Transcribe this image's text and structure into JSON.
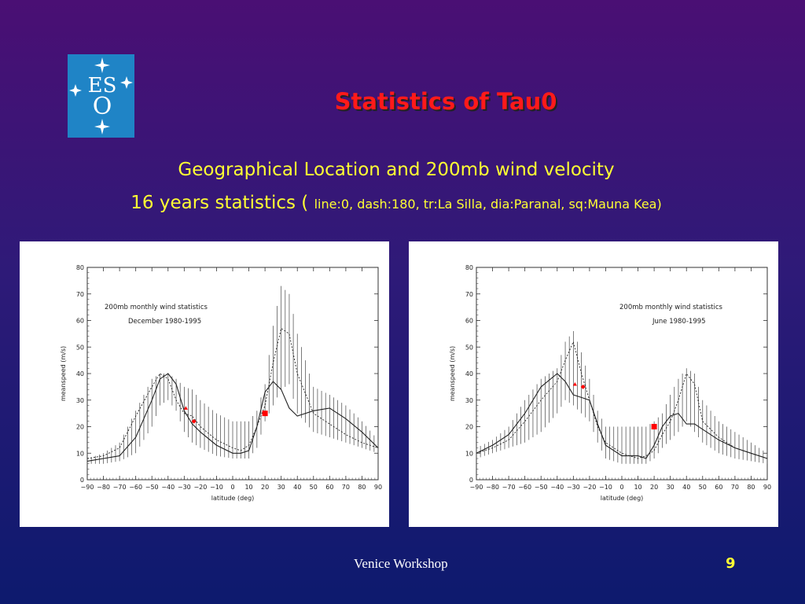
{
  "slide": {
    "title": "Statistics of Tau0",
    "subtitle1": "Geographical Location and 200mb wind velocity",
    "subtitle2_main": "16 years statistics ( ",
    "subtitle2_small": "line:0, dash:180, tr:La Silla, dia:Paranal, sq:Mauna Kea)",
    "footer": "Venice Workshop",
    "page_number": "9",
    "colors": {
      "title": "#ff1a1a",
      "subtitle": "#ffff33",
      "markers": "#ff0000"
    }
  },
  "logo": {
    "text_top": "ES",
    "text_bottom": "O",
    "icon": "eso-logo-icon"
  },
  "chart_data": [
    {
      "type": "line",
      "annotation1": "200mb monthly wind statistics",
      "annotation2": "December 1980-1995",
      "xlabel": "latitude (deg)",
      "ylabel": "meanspeed (m/s)",
      "xlim": [
        -90,
        90
      ],
      "ylim": [
        0,
        80
      ],
      "xticks": [
        -90,
        -80,
        -70,
        -60,
        -50,
        -40,
        -30,
        -20,
        -10,
        0,
        10,
        20,
        30,
        40,
        50,
        60,
        70,
        80,
        90
      ],
      "yticks": [
        0,
        10,
        20,
        30,
        40,
        50,
        60,
        70,
        80
      ],
      "x": [
        -90,
        -80,
        -70,
        -60,
        -50,
        -45,
        -40,
        -35,
        -30,
        -25,
        -20,
        -10,
        0,
        5,
        10,
        15,
        20,
        25,
        30,
        35,
        40,
        50,
        60,
        70,
        80,
        90
      ],
      "series": [
        {
          "style": "solid",
          "values": [
            7,
            8,
            9,
            16,
            30,
            38,
            40,
            36,
            26,
            21,
            18,
            13,
            10,
            10,
            11,
            20,
            33,
            37,
            34,
            27,
            24,
            26,
            27,
            23,
            18,
            12
          ]
        },
        {
          "style": "dashed",
          "values": [
            8,
            9,
            12,
            24,
            35,
            40,
            38,
            30,
            25,
            24,
            20,
            15,
            12,
            11,
            13,
            20,
            28,
            44,
            57,
            55,
            40,
            25,
            21,
            17,
            14,
            12
          ]
        }
      ],
      "error_bars": {
        "x": [
          -90,
          -80,
          -70,
          -60,
          -50,
          -45,
          -40,
          -35,
          -30,
          -25,
          -20,
          -10,
          0,
          5,
          10,
          15,
          20,
          25,
          30,
          35,
          40,
          50,
          60,
          70,
          80,
          90
        ],
        "low": [
          6,
          6,
          7,
          10,
          20,
          28,
          30,
          26,
          18,
          14,
          12,
          9,
          8,
          8,
          8,
          12,
          22,
          28,
          34,
          36,
          25,
          18,
          16,
          14,
          12,
          10
        ],
        "high": [
          8,
          10,
          14,
          26,
          38,
          40,
          40,
          38,
          35,
          34,
          30,
          25,
          22,
          22,
          22,
          26,
          36,
          58,
          73,
          70,
          55,
          35,
          32,
          28,
          22,
          15
        ]
      },
      "markers": [
        {
          "site": "La Silla",
          "shape": "triangle",
          "x": -29,
          "y": 27
        },
        {
          "site": "Paranal",
          "shape": "diamond",
          "x": -24,
          "y": 22
        },
        {
          "site": "Mauna Kea",
          "shape": "square",
          "x": 20,
          "y": 25
        }
      ]
    },
    {
      "type": "line",
      "annotation1": "200mb monthly wind statistics",
      "annotation2": "June 1980-1995",
      "xlabel": "latitude (deg)",
      "ylabel": "meanspeed (m/s)",
      "xlim": [
        -90,
        90
      ],
      "ylim": [
        0,
        80
      ],
      "xticks": [
        -90,
        -80,
        -70,
        -60,
        -50,
        -40,
        -30,
        -20,
        -10,
        0,
        10,
        20,
        30,
        40,
        50,
        60,
        70,
        80,
        90
      ],
      "yticks": [
        0,
        10,
        20,
        30,
        40,
        50,
        60,
        70,
        80
      ],
      "x": [
        -90,
        -80,
        -70,
        -60,
        -50,
        -40,
        -35,
        -30,
        -25,
        -20,
        -15,
        -10,
        0,
        10,
        15,
        20,
        25,
        30,
        35,
        40,
        45,
        50,
        60,
        70,
        80,
        90
      ],
      "series": [
        {
          "style": "solid",
          "values": [
            10,
            13,
            17,
            25,
            35,
            40,
            37,
            32,
            31,
            30,
            21,
            13,
            9,
            9,
            8,
            13,
            20,
            24,
            25,
            21,
            21,
            19,
            15,
            12,
            10,
            8
          ]
        },
        {
          "style": "dashed",
          "values": [
            10,
            12,
            15,
            22,
            30,
            37,
            45,
            52,
            40,
            30,
            20,
            14,
            10,
            8,
            9,
            11,
            17,
            22,
            30,
            40,
            36,
            22,
            16,
            12,
            10,
            8
          ]
        }
      ],
      "error_bars": {
        "x": [
          -90,
          -80,
          -70,
          -60,
          -50,
          -40,
          -35,
          -30,
          -25,
          -20,
          -15,
          -10,
          0,
          10,
          15,
          20,
          25,
          30,
          35,
          40,
          45,
          50,
          60,
          70,
          80,
          90
        ],
        "low": [
          8,
          10,
          12,
          14,
          18,
          25,
          30,
          28,
          25,
          22,
          14,
          8,
          6,
          6,
          6,
          8,
          12,
          15,
          18,
          22,
          18,
          14,
          10,
          8,
          7,
          6
        ],
        "high": [
          12,
          15,
          20,
          30,
          38,
          42,
          52,
          56,
          48,
          38,
          26,
          20,
          20,
          20,
          20,
          22,
          25,
          32,
          38,
          42,
          40,
          30,
          22,
          18,
          14,
          10
        ]
      },
      "markers": [
        {
          "site": "La Silla",
          "shape": "triangle",
          "x": -29,
          "y": 36
        },
        {
          "site": "Paranal",
          "shape": "diamond",
          "x": -24,
          "y": 35
        },
        {
          "site": "Mauna Kea",
          "shape": "square",
          "x": 20,
          "y": 20
        }
      ]
    }
  ]
}
